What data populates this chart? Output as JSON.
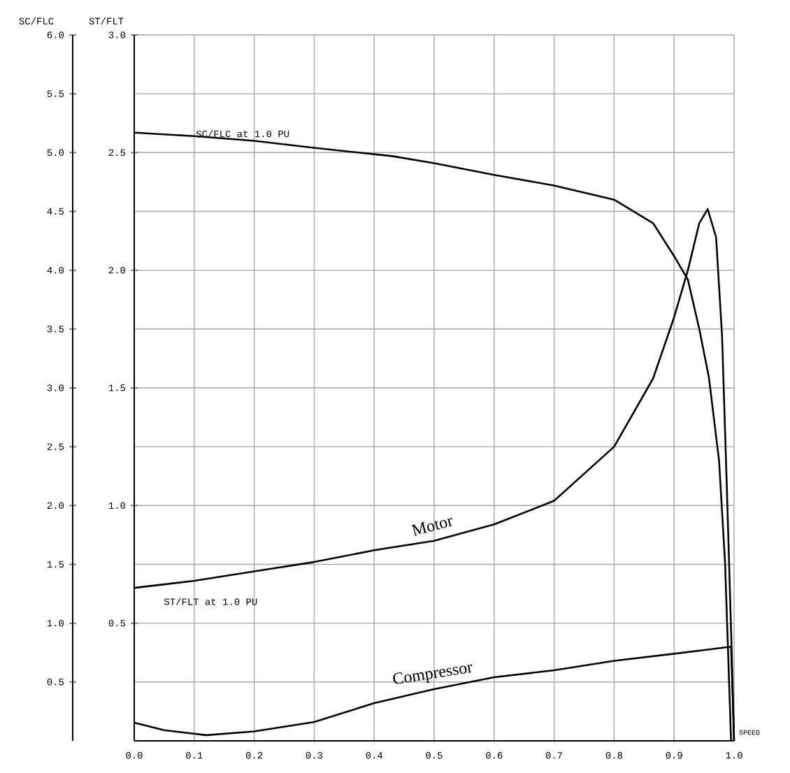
{
  "chart_data": {
    "type": "line",
    "xlabel": "SPEED",
    "ylabel": "SC/FLC",
    "y2label": "ST/FLT",
    "xlim": [
      0,
      1
    ],
    "xticks": [
      {
        "value": 0,
        "label": "0.0"
      },
      0.1,
      0.2,
      0.3,
      0.4,
      0.5,
      0.6,
      0.7,
      0.8,
      0.9,
      {
        "value": 1,
        "label": "1.0"
      }
    ],
    "ylim": [
      0,
      6
    ],
    "yticks": [
      0.5,
      {
        "value": 1,
        "label": "1.0"
      },
      1.5,
      {
        "value": 2,
        "label": "2.0"
      },
      2.5,
      {
        "value": 3,
        "label": "3.0"
      },
      3.5,
      {
        "value": 4,
        "label": "4.0"
      },
      4.5,
      {
        "value": 5,
        "label": "5.0"
      },
      5.5,
      {
        "value": 6,
        "label": "6.0"
      }
    ],
    "y2lim": [
      0,
      3
    ],
    "y2ticks": [
      0.5,
      {
        "value": 1,
        "label": "1.0"
      },
      1.5,
      {
        "value": 2,
        "label": "2.0"
      },
      2.5,
      {
        "value": 3,
        "label": "3.0"
      }
    ],
    "grid": true,
    "marker": "none",
    "line_style": "solid",
    "color": "#000000",
    "series": [
      {
        "name": "SC/FLC at 1.0 PU",
        "x": [
          0,
          0.1,
          0.2,
          0.3,
          0.43,
          0.5,
          0.6,
          0.7,
          0.8,
          0.865,
          0.9,
          0.923,
          0.942,
          0.958,
          0.975,
          0.985,
          0.995
        ],
        "values": [
          5.17,
          5.14,
          5.1,
          5.04,
          4.97,
          4.91,
          4.81,
          4.72,
          4.6,
          4.4,
          4.12,
          3.92,
          3.5,
          3.09,
          2.38,
          1.51,
          0
        ]
      },
      {
        "name": "Motor",
        "axis": "y2",
        "x": [
          0,
          0.1,
          0.2,
          0.3,
          0.4,
          0.5,
          0.6,
          0.7,
          0.8,
          0.865,
          0.9,
          0.923,
          0.942,
          0.956,
          0.97,
          0.98,
          0.988,
          0.995,
          1.0
        ],
        "values": [
          0.65,
          0.68,
          0.72,
          0.76,
          0.81,
          0.85,
          0.92,
          1.02,
          1.25,
          1.54,
          1.8,
          2.0,
          2.2,
          2.26,
          2.14,
          1.72,
          1.07,
          0.47,
          0
        ]
      },
      {
        "name": "Compressor",
        "axis": "y2",
        "x": [
          0,
          0.05,
          0.12,
          0.2,
          0.3,
          0.4,
          0.5,
          0.6,
          0.7,
          0.8,
          0.9,
          0.995,
          1.0
        ],
        "values": [
          0.077,
          0.045,
          0.024,
          0.04,
          0.08,
          0.16,
          0.22,
          0.27,
          0.3,
          0.34,
          0.37,
          0.4,
          0
        ]
      }
    ],
    "annotations": [
      "ST/FLT at 1.0 PU"
    ]
  }
}
